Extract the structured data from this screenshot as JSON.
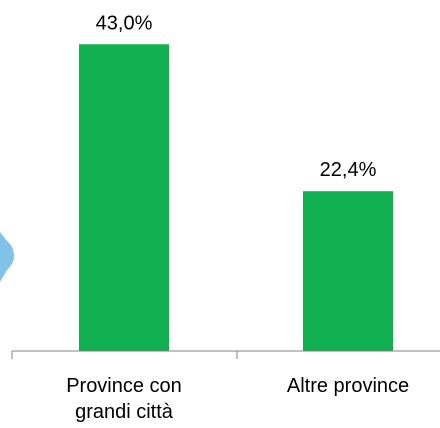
{
  "chart_data": {
    "type": "bar",
    "categories": [
      [
        "Province con",
        "grandi città"
      ],
      [
        "Altre province"
      ]
    ],
    "values": [
      43.0,
      22.4
    ],
    "value_labels": [
      "43,0%",
      "22,4%"
    ],
    "title": "",
    "xlabel": "",
    "ylabel": "",
    "ylim": [
      0,
      45
    ],
    "grid": false,
    "colors": {
      "bar": "#10B050",
      "axis": "#808080",
      "text": "#000000",
      "decoration": "#7FC4E8"
    }
  }
}
